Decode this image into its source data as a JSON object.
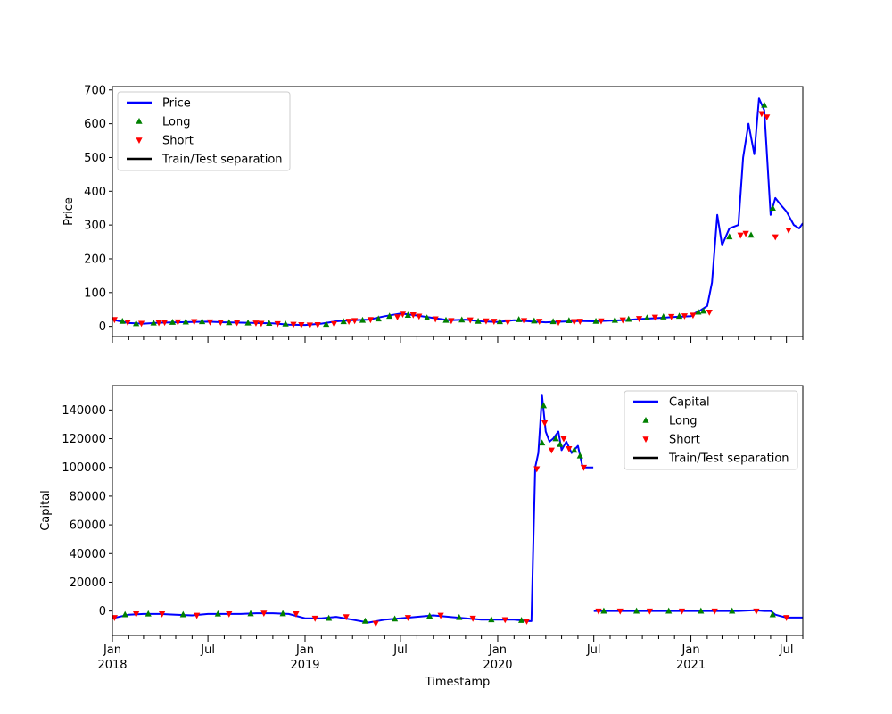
{
  "colors": {
    "line": "#0000ff",
    "long": "#008000",
    "short": "#ff0000",
    "separation": "#000000"
  },
  "chart_data": [
    {
      "type": "line",
      "xlabel": "",
      "ylabel": "Price",
      "xlim": [
        "2018-01-01",
        "2021-08-01"
      ],
      "ylim": [
        -30,
        710
      ],
      "yticks": [
        0,
        100,
        200,
        300,
        400,
        500,
        600,
        700
      ],
      "legend": {
        "placement": "top-left",
        "entries": [
          "Price",
          "Long",
          "Short",
          "Train/Test separation"
        ]
      },
      "series": [
        {
          "name": "Price",
          "x": [
            "2018-01-01",
            "2018-02-01",
            "2018-03-01",
            "2018-04-01",
            "2018-05-01",
            "2018-06-01",
            "2018-07-01",
            "2018-08-01",
            "2018-09-01",
            "2018-10-01",
            "2018-11-01",
            "2018-12-01",
            "2019-01-01",
            "2019-02-01",
            "2019-03-01",
            "2019-04-01",
            "2019-05-01",
            "2019-06-01",
            "2019-07-01",
            "2019-08-01",
            "2019-09-01",
            "2019-10-01",
            "2019-11-01",
            "2019-12-01",
            "2020-01-01",
            "2020-02-01",
            "2020-03-01",
            "2020-04-01",
            "2020-05-01",
            "2020-06-01",
            "2020-07-01",
            "2020-08-01",
            "2020-09-01",
            "2020-10-01",
            "2020-11-01",
            "2020-12-01",
            "2021-01-01",
            "2021-01-10",
            "2021-01-20",
            "2021-02-01",
            "2021-02-10",
            "2021-02-20",
            "2021-03-01",
            "2021-03-15",
            "2021-04-01",
            "2021-04-10",
            "2021-04-20",
            "2021-05-01",
            "2021-05-10",
            "2021-05-20",
            "2021-06-01",
            "2021-06-10",
            "2021-06-20",
            "2021-07-01",
            "2021-07-15",
            "2021-07-25",
            "2021-08-01"
          ],
          "y": [
            20,
            10,
            8,
            11,
            12,
            13,
            14,
            12,
            11,
            10,
            9,
            5,
            4,
            8,
            15,
            18,
            20,
            30,
            38,
            32,
            25,
            18,
            20,
            15,
            13,
            18,
            15,
            12,
            14,
            16,
            15,
            17,
            19,
            22,
            25,
            28,
            30,
            40,
            48,
            60,
            130,
            330,
            240,
            290,
            300,
            500,
            600,
            510,
            675,
            640,
            330,
            380,
            360,
            340,
            300,
            290,
            305
          ]
        }
      ],
      "markers": {
        "long": {
          "name": "Long",
          "x": [
            "2018-01-20",
            "2018-02-15",
            "2018-03-20",
            "2018-04-25",
            "2018-05-20",
            "2018-06-20",
            "2018-08-10",
            "2018-09-15",
            "2018-10-25",
            "2018-11-25",
            "2019-02-10",
            "2019-03-15",
            "2019-04-20",
            "2019-05-20",
            "2019-06-10",
            "2019-07-15",
            "2019-08-20",
            "2019-09-25",
            "2019-10-25",
            "2019-11-25",
            "2020-01-05",
            "2020-02-10",
            "2020-03-10",
            "2020-04-15",
            "2020-05-15",
            "2020-07-05",
            "2020-08-10",
            "2020-09-05",
            "2020-10-10",
            "2020-11-10",
            "2020-12-10",
            "2021-01-15",
            "2021-01-25",
            "2021-03-15",
            "2021-04-25",
            "2021-05-20",
            "2021-06-05"
          ],
          "y": [
            15,
            8,
            10,
            12,
            13,
            14,
            11,
            10,
            9,
            7,
            6,
            14,
            18,
            22,
            30,
            33,
            25,
            18,
            19,
            15,
            14,
            20,
            16,
            14,
            17,
            15,
            18,
            21,
            25,
            28,
            30,
            42,
            45,
            265,
            270,
            655,
            350
          ]
        },
        "short": {
          "name": "Short",
          "x": [
            "2018-01-05",
            "2018-01-30",
            "2018-02-25",
            "2018-03-30",
            "2018-04-10",
            "2018-05-05",
            "2018-06-05",
            "2018-07-05",
            "2018-07-25",
            "2018-08-25",
            "2018-09-30",
            "2018-10-10",
            "2018-11-10",
            "2018-12-10",
            "2018-12-25",
            "2019-01-10",
            "2019-01-25",
            "2019-02-25",
            "2019-03-25",
            "2019-04-05",
            "2019-05-05",
            "2019-06-25",
            "2019-07-05",
            "2019-07-25",
            "2019-08-05",
            "2019-09-05",
            "2019-10-05",
            "2019-11-10",
            "2019-12-10",
            "2019-12-25",
            "2020-01-20",
            "2020-02-20",
            "2020-03-20",
            "2020-04-25",
            "2020-05-25",
            "2020-06-05",
            "2020-07-15",
            "2020-08-25",
            "2020-09-25",
            "2020-10-25",
            "2020-11-25",
            "2020-12-20",
            "2021-01-05",
            "2021-02-05",
            "2021-04-05",
            "2021-04-15",
            "2021-05-15",
            "2021-05-25",
            "2021-06-10",
            "2021-07-05"
          ],
          "y": [
            20,
            12,
            9,
            11,
            12,
            13,
            14,
            13,
            12,
            11,
            10,
            9,
            8,
            6,
            5,
            4,
            5,
            8,
            15,
            17,
            20,
            28,
            36,
            34,
            30,
            22,
            17,
            19,
            16,
            15,
            13,
            17,
            15,
            12,
            14,
            15,
            16,
            19,
            23,
            27,
            29,
            31,
            33,
            42,
            270,
            275,
            630,
            620,
            265,
            285
          ]
        }
      }
    },
    {
      "type": "line",
      "xlabel": "Timestamp",
      "ylabel": "Capital",
      "xlim": [
        "2018-01-01",
        "2021-08-01"
      ],
      "ylim": [
        -17000,
        157000
      ],
      "yticks": [
        0,
        20000,
        40000,
        60000,
        80000,
        100000,
        120000,
        140000
      ],
      "xticks": [
        {
          "date": "2018-01-01",
          "label": "Jan",
          "year": "2018"
        },
        {
          "date": "2018-07-01",
          "label": "Jul",
          "year": ""
        },
        {
          "date": "2019-01-01",
          "label": "Jan",
          "year": "2019"
        },
        {
          "date": "2019-07-01",
          "label": "Jul",
          "year": ""
        },
        {
          "date": "2020-01-01",
          "label": "Jan",
          "year": "2020"
        },
        {
          "date": "2020-07-01",
          "label": "Jul",
          "year": ""
        },
        {
          "date": "2021-01-01",
          "label": "Jan",
          "year": "2021"
        },
        {
          "date": "2021-07-01",
          "label": "Jul",
          "year": ""
        }
      ],
      "legend": {
        "placement": "top-right",
        "entries": [
          "Capital",
          "Long",
          "Short",
          "Train/Test separation"
        ]
      },
      "series": [
        {
          "name": "Capital",
          "segments": [
            {
              "x": [
                "2018-01-01",
                "2018-02-01",
                "2018-03-01",
                "2018-04-01",
                "2018-05-01",
                "2018-06-01",
                "2018-07-01",
                "2018-08-01",
                "2018-09-01",
                "2018-10-01",
                "2018-11-01",
                "2018-12-01",
                "2019-01-01",
                "2019-02-01",
                "2019-03-01",
                "2019-04-01",
                "2019-05-01",
                "2019-06-01",
                "2019-07-01",
                "2019-08-01",
                "2019-09-01",
                "2019-10-01",
                "2019-11-01",
                "2019-12-01",
                "2020-01-01",
                "2020-02-01",
                "2020-03-01",
                "2020-03-05",
                "2020-03-08",
                "2020-03-12",
                "2020-03-18",
                "2020-03-25",
                "2020-04-01",
                "2020-04-08",
                "2020-04-15",
                "2020-04-25",
                "2020-05-01",
                "2020-05-10",
                "2020-05-20",
                "2020-06-01",
                "2020-06-10",
                "2020-06-15",
                "2020-06-30"
              ],
              "y": [
                -5000,
                -2500,
                -2000,
                -2000,
                -2500,
                -3000,
                -2000,
                -2000,
                -2000,
                -1500,
                -1500,
                -2000,
                -5000,
                -5000,
                -4000,
                -6000,
                -8000,
                -6000,
                -5000,
                -4000,
                -3000,
                -4000,
                -5000,
                -6000,
                -6000,
                -6000,
                -7000,
                -7000,
                40000,
                100000,
                110000,
                150000,
                125000,
                118000,
                120000,
                125000,
                112000,
                118000,
                110000,
                115000,
                100000,
                100000,
                100000
              ]
            },
            {
              "x": [
                "2020-07-01",
                "2020-08-01",
                "2020-09-01",
                "2020-10-01",
                "2020-11-01",
                "2020-12-01",
                "2021-01-01",
                "2021-02-01",
                "2021-03-01",
                "2021-04-01",
                "2021-05-01",
                "2021-05-20",
                "2021-06-01",
                "2021-06-10",
                "2021-06-20",
                "2021-07-01",
                "2021-08-01"
              ],
              "y": [
                0,
                0,
                0,
                0,
                0,
                0,
                0,
                0,
                0,
                0,
                500,
                0,
                0,
                -2500,
                -3500,
                -4500,
                -4500
              ]
            }
          ]
        }
      ],
      "markers": {
        "long": {
          "name": "Long",
          "x": [
            "2018-01-25",
            "2018-03-10",
            "2018-05-15",
            "2018-07-20",
            "2018-09-20",
            "2018-11-20",
            "2019-02-15",
            "2019-04-25",
            "2019-06-20",
            "2019-08-25",
            "2019-10-20",
            "2019-12-20",
            "2020-02-15",
            "2020-03-25",
            "2020-03-28",
            "2020-04-20",
            "2020-04-28",
            "2020-05-25",
            "2020-06-05",
            "2020-07-20",
            "2020-09-20",
            "2020-11-20",
            "2021-01-20",
            "2021-03-20",
            "2021-06-05"
          ],
          "y": [
            -2500,
            -2000,
            -2500,
            -2000,
            -1800,
            -1800,
            -5000,
            -7000,
            -5500,
            -3500,
            -4500,
            -6000,
            -6500,
            117000,
            143000,
            120000,
            116000,
            112000,
            108000,
            0,
            0,
            0,
            0,
            0,
            -2500
          ]
        },
        "short": {
          "name": "Short",
          "x": [
            "2018-01-05",
            "2018-02-15",
            "2018-04-05",
            "2018-06-10",
            "2018-08-10",
            "2018-10-15",
            "2018-12-15",
            "2019-01-20",
            "2019-03-20",
            "2019-05-15",
            "2019-07-15",
            "2019-09-15",
            "2019-11-15",
            "2020-01-15",
            "2020-02-25",
            "2020-03-15",
            "2020-03-30",
            "2020-04-12",
            "2020-05-05",
            "2020-05-15",
            "2020-06-12",
            "2020-07-10",
            "2020-08-20",
            "2020-10-15",
            "2020-12-15",
            "2021-02-15",
            "2021-05-05",
            "2021-07-01"
          ],
          "y": [
            -4500,
            -2000,
            -2000,
            -3000,
            -2000,
            -1500,
            -2000,
            -5000,
            -4000,
            -8500,
            -4500,
            -3000,
            -5000,
            -6000,
            -7000,
            99000,
            131000,
            112000,
            120000,
            113000,
            100000,
            0,
            0,
            0,
            0,
            0,
            0,
            -4500
          ]
        }
      }
    }
  ]
}
